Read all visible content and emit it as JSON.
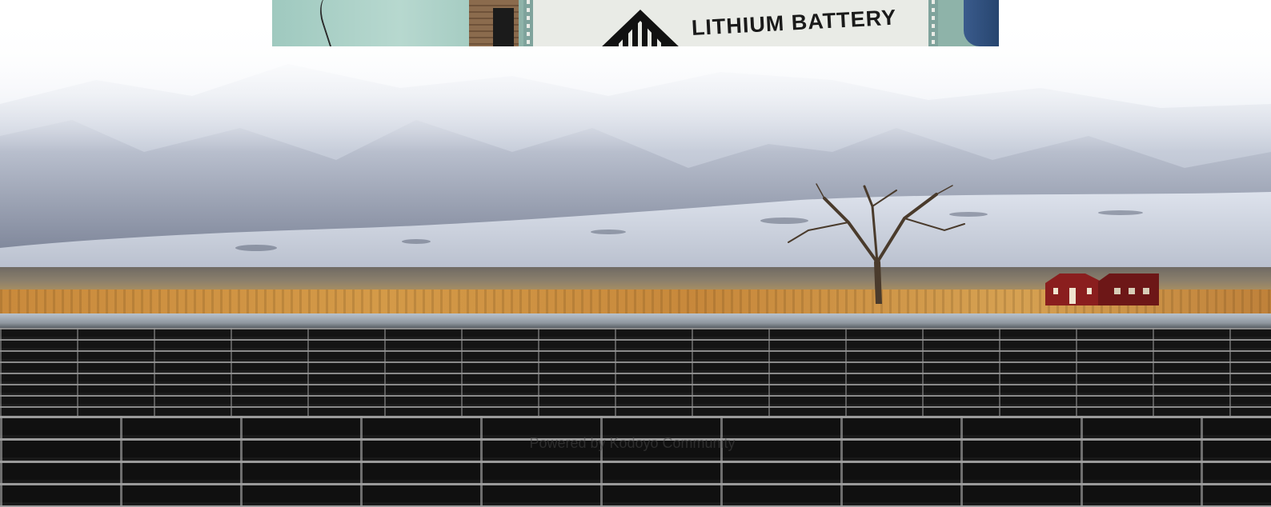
{
  "hero": {
    "scene": "landscape-photo",
    "colors": {
      "sky": "#e6ebf3",
      "field": "#d49a48",
      "barn": "#8a1e1e",
      "panels": "#141414"
    }
  },
  "battery_photo": {
    "label_text": "LITHIUM BATTERY",
    "hazard_icon": "hazard-class-9-icon"
  },
  "caption": {
    "credit_text": "Powered by Kodoyo Community"
  }
}
